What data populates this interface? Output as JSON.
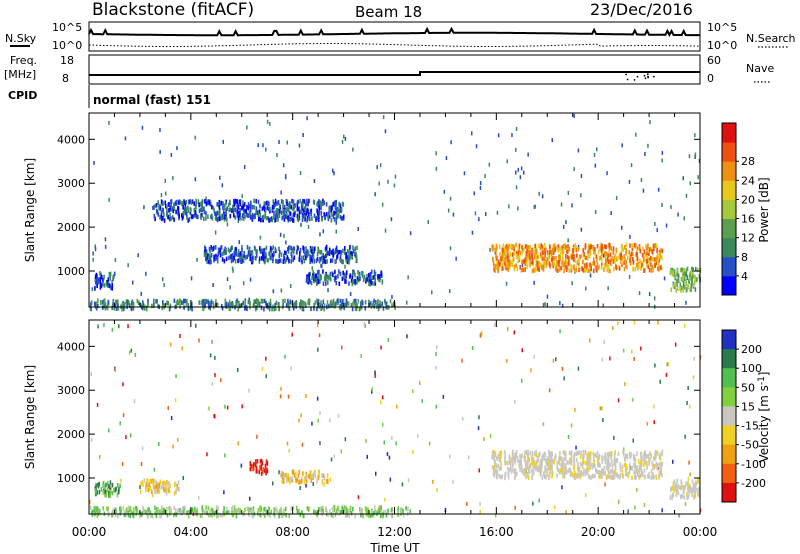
{
  "header": {
    "station": "Blackstone (fitACF)",
    "beam": "Beam 18",
    "date": "23/Dec/2016"
  },
  "top_panels": {
    "nsky_label": "N.Sky",
    "nsky_max": "10^5",
    "nsky_min": "10^0",
    "nsearch_label": "N.Search",
    "freq_label": "Freq.",
    "freq_unit": "[MHz]",
    "freq_max": "18",
    "freq_min": "8",
    "nave_label": "Nave",
    "nave_max": "60",
    "nave_min": "0",
    "cpid_label": "CPID",
    "cpid_value": "normal (fast) 151"
  },
  "chart_data": [
    {
      "type": "heatmap",
      "name": "power",
      "ylabel": "Slant Range [km]",
      "xlabel": "Time UT",
      "x_ticks": [
        "00:00",
        "04:00",
        "08:00",
        "12:00",
        "16:00",
        "20:00",
        "00:00"
      ],
      "xlim_hours": [
        0,
        24
      ],
      "ylim": [
        180,
        4600
      ],
      "y_ticks": [
        1000,
        2000,
        3000,
        4000
      ],
      "colorbar": {
        "label": "Power [dB]",
        "ticks": [
          "4",
          "8",
          "12",
          "16",
          "20",
          "24",
          "28"
        ],
        "colors": [
          "#0000ff",
          "#2550c8",
          "#3a8a5c",
          "#5aa050",
          "#a8c83c",
          "#e8c818",
          "#f09010",
          "#f05010",
          "#e01010"
        ]
      },
      "regions": [
        {
          "t": [
            0.2,
            1.0
          ],
          "r": [
            650,
            1000
          ],
          "level": 1
        },
        {
          "t": [
            0.0,
            12.0
          ],
          "r": [
            180,
            380
          ],
          "level": 2
        },
        {
          "t": [
            2.5,
            10.0
          ],
          "r": [
            2200,
            2650
          ],
          "level": 1
        },
        {
          "t": [
            4.5,
            10.5
          ],
          "r": [
            1250,
            1600
          ],
          "level": 1
        },
        {
          "t": [
            8.5,
            11.5
          ],
          "r": [
            750,
            1050
          ],
          "level": 1
        },
        {
          "t": [
            15.8,
            22.5
          ],
          "r": [
            1050,
            1650
          ],
          "level": 6
        },
        {
          "t": [
            22.8,
            24.0
          ],
          "r": [
            600,
            1100
          ],
          "level": 3
        }
      ]
    },
    {
      "type": "heatmap",
      "name": "velocity",
      "ylabel": "Slant Range [km]",
      "xlabel": "Time UT",
      "x_ticks": [
        "00:00",
        "04:00",
        "08:00",
        "12:00",
        "16:00",
        "20:00",
        "00:00"
      ],
      "xlim_hours": [
        0,
        24
      ],
      "ylim": [
        180,
        4600
      ],
      "y_ticks": [
        1000,
        2000,
        3000,
        4000
      ],
      "colorbar": {
        "label": "Velocity [m s^-1]",
        "ticks": [
          "200",
          "100",
          "50",
          "15",
          "-15",
          "-50",
          "-100",
          "-200"
        ],
        "colors": [
          "#2030c0",
          "#2a7a4a",
          "#50c050",
          "#80d040",
          "#c8c8c0",
          "#f0d020",
          "#f0a010",
          "#f06010",
          "#e01010"
        ]
      },
      "regions": [
        {
          "t": [
            0.2,
            1.2
          ],
          "r": [
            650,
            950
          ],
          "level": 2
        },
        {
          "t": [
            0.0,
            12.5
          ],
          "r": [
            180,
            380
          ],
          "level": 3
        },
        {
          "t": [
            2.0,
            3.5
          ],
          "r": [
            700,
            1000
          ],
          "level": 5
        },
        {
          "t": [
            7.5,
            9.5
          ],
          "r": [
            950,
            1200
          ],
          "level": 5
        },
        {
          "t": [
            6.3,
            7.0
          ],
          "r": [
            1150,
            1450
          ],
          "level": 8
        },
        {
          "t": [
            15.8,
            22.5
          ],
          "r": [
            1050,
            1650
          ],
          "level": 4
        },
        {
          "t": [
            22.8,
            24.0
          ],
          "r": [
            600,
            1000
          ],
          "level": 4
        }
      ]
    }
  ]
}
